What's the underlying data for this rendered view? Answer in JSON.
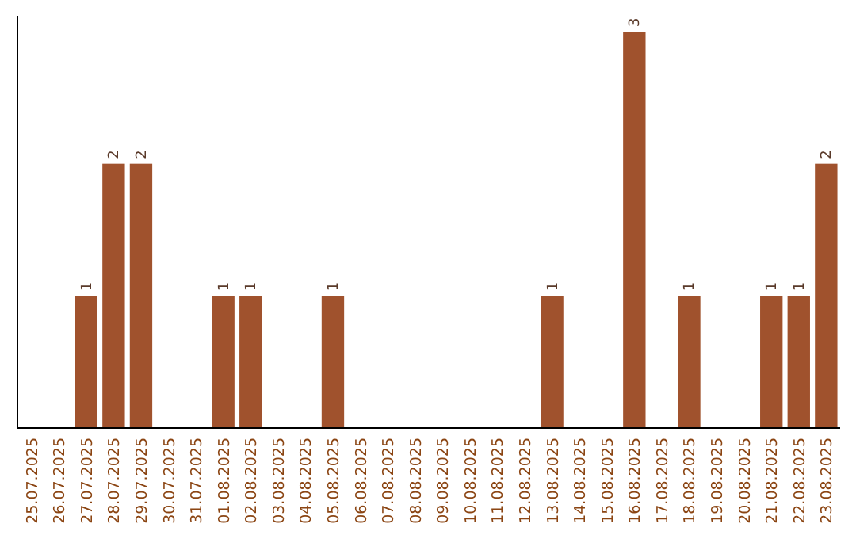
{
  "chart_data": {
    "type": "bar",
    "categories": [
      "25.07.2025",
      "26.07.2025",
      "27.07.2025",
      "28.07.2025",
      "29.07.2025",
      "30.07.2025",
      "31.07.2025",
      "01.08.2025",
      "02.08.2025",
      "03.08.2025",
      "04.08.2025",
      "05.08.2025",
      "06.08.2025",
      "07.08.2025",
      "08.08.2025",
      "09.08.2025",
      "10.08.2025",
      "11.08.2025",
      "12.08.2025",
      "13.08.2025",
      "14.08.2025",
      "15.08.2025",
      "16.08.2025",
      "17.08.2025",
      "18.08.2025",
      "19.08.2025",
      "20.08.2025",
      "21.08.2025",
      "22.08.2025",
      "23.08.2025"
    ],
    "values": [
      0,
      0,
      1,
      2,
      2,
      0,
      0,
      1,
      1,
      0,
      0,
      1,
      0,
      0,
      0,
      0,
      0,
      0,
      0,
      1,
      0,
      0,
      3,
      0,
      1,
      0,
      0,
      1,
      1,
      2
    ],
    "value_labels": [
      null,
      null,
      "1",
      "2",
      "2",
      null,
      null,
      "1",
      "1",
      null,
      null,
      "1",
      null,
      null,
      null,
      null,
      null,
      null,
      null,
      "1",
      null,
      null,
      "3",
      null,
      "1",
      null,
      null,
      "1",
      "1",
      "2"
    ],
    "color": "#a0522d",
    "tick_labels": "x"
  }
}
